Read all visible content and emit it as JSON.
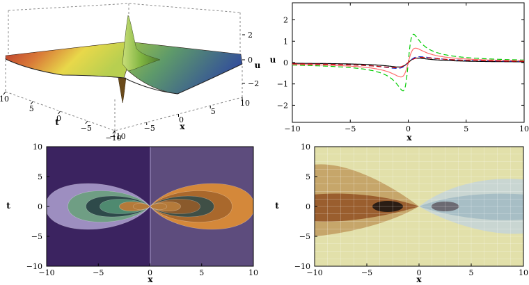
{
  "chart_data": [
    {
      "type": "surface",
      "panel": "top-left",
      "axes": {
        "x": "x",
        "t": "t",
        "u": "u"
      },
      "xlim": [
        -10,
        10
      ],
      "tlim": [
        -10,
        10
      ],
      "ulim": [
        -2.7,
        2.7
      ],
      "x_ticks": [
        "-10",
        "-5",
        "0",
        "5",
        "10"
      ],
      "t_ticks": [
        "-10",
        "-5",
        "0",
        "5",
        "10"
      ],
      "u_ticks": [
        "-2",
        "0",
        "2"
      ],
      "colors": [
        "#c0392b",
        "#e8d040",
        "#8fbf4a",
        "#3d5aa8"
      ]
    },
    {
      "type": "line",
      "panel": "top-right",
      "xlabel": "x",
      "ylabel": "u",
      "xlim": [
        -10,
        10
      ],
      "ylim": [
        -2.8,
        2.8
      ],
      "x_ticks": [
        "-10",
        "-5",
        "0",
        "5",
        "10"
      ],
      "y_ticks": [
        "-2",
        "-1",
        "0",
        "1",
        "2"
      ],
      "series": [
        {
          "color": "#00cc00",
          "dash": "dashed",
          "amp": 2.65
        },
        {
          "color": "#ff6b6b",
          "dash": "solid",
          "amp": 1.35
        },
        {
          "color": "#000000",
          "dash": "solid",
          "amp": 0.42
        },
        {
          "color": "#2233cc",
          "dash": "dashed",
          "amp": 0.55
        },
        {
          "color": "#cc0000",
          "dash": "dashed",
          "amp": 0.48
        }
      ]
    },
    {
      "type": "contour",
      "panel": "bottom-left",
      "xlabel": "x",
      "ylabel": "t",
      "xlim": [
        -10,
        10
      ],
      "ylim": [
        -10,
        10
      ],
      "x_ticks": [
        "-10",
        "-5",
        "0",
        "5",
        "10"
      ],
      "y_ticks": [
        "-10",
        "-5",
        "0",
        "5",
        "10"
      ],
      "left_levels": [
        "#3b2360",
        "#9d8ec0",
        "#6f9e84",
        "#2e4a4a",
        "#4f8a70",
        "#b47a3a"
      ],
      "right_levels": [
        "#5d4c7d",
        "#d4883a",
        "#a9682c",
        "#3f4f46",
        "#8a5a2c",
        "#b47a3a"
      ]
    },
    {
      "type": "density",
      "panel": "bottom-right",
      "xlabel": "x",
      "ylabel": "t",
      "xlim": [
        -10,
        10
      ],
      "ylim": [
        -10,
        10
      ],
      "x_ticks": [
        "-10",
        "-5",
        "0",
        "5",
        "10"
      ],
      "y_ticks": [
        "-10",
        "-5",
        "0",
        "5",
        "10"
      ],
      "colors": [
        "#e2e0aa",
        "#c6a66a",
        "#9a5e2e",
        "#2b1d14",
        "#6b6a72",
        "#a7bec5"
      ]
    }
  ]
}
